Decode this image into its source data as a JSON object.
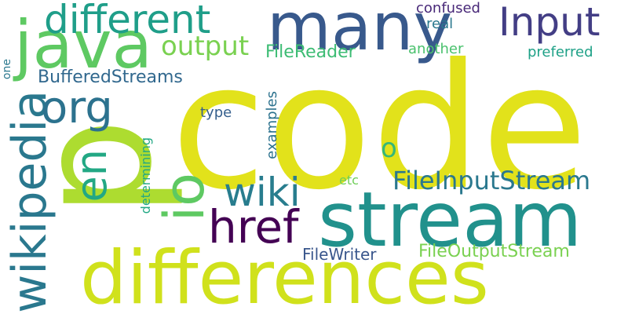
{
  "words": {
    "code": {
      "text": "code",
      "color": "#e2e21b"
    },
    "p": {
      "text": "p",
      "color": "#addc30"
    },
    "stream": {
      "text": "stream",
      "color": "#21918c"
    },
    "differences": {
      "text": "differences",
      "color": "#d0e11c"
    },
    "many": {
      "text": "many",
      "color": "#38598c"
    },
    "java": {
      "text": "java",
      "color": "#5ec962"
    },
    "different": {
      "text": "different",
      "color": "#1f9e89"
    },
    "input": {
      "text": "Input",
      "color": "#433e85"
    },
    "wikipedia": {
      "text": "wikipedia",
      "color": "#2a788e"
    },
    "org": {
      "text": "org",
      "color": "#2c728e"
    },
    "io": {
      "text": "io",
      "color": "#5ec962"
    },
    "href": {
      "text": "href",
      "color": "#440154"
    },
    "wiki": {
      "text": "wiki",
      "color": "#287d8e"
    },
    "en": {
      "text": "en",
      "color": "#22a884"
    },
    "output": {
      "text": "output",
      "color": "#7ad151"
    },
    "fileinputstream": {
      "text": "FileInputStream",
      "color": "#2a788e"
    },
    "fileoutputstream": {
      "text": "FileOutputStream",
      "color": "#7ad151"
    },
    "o": {
      "text": "o",
      "color": "#35b779"
    },
    "filereader": {
      "text": "FileReader",
      "color": "#3dbc74"
    },
    "bufferedstreams": {
      "text": "BufferedStreams",
      "color": "#31688e"
    },
    "filewriter": {
      "text": "FileWriter",
      "color": "#39568c"
    },
    "confused": {
      "text": "confused",
      "color": "#482878"
    },
    "real": {
      "text": "real",
      "color": "#2a788e"
    },
    "another": {
      "text": "another",
      "color": "#4ac16d"
    },
    "preferred": {
      "text": "preferred",
      "color": "#1fa187"
    },
    "examples": {
      "text": "examples",
      "color": "#2c728e"
    },
    "type": {
      "text": "type",
      "color": "#355f8d"
    },
    "determining": {
      "text": "determining",
      "color": "#22a884"
    },
    "etc": {
      "text": "etc",
      "color": "#6ece58"
    },
    "one": {
      "text": "one",
      "color": "#2a788e"
    }
  }
}
